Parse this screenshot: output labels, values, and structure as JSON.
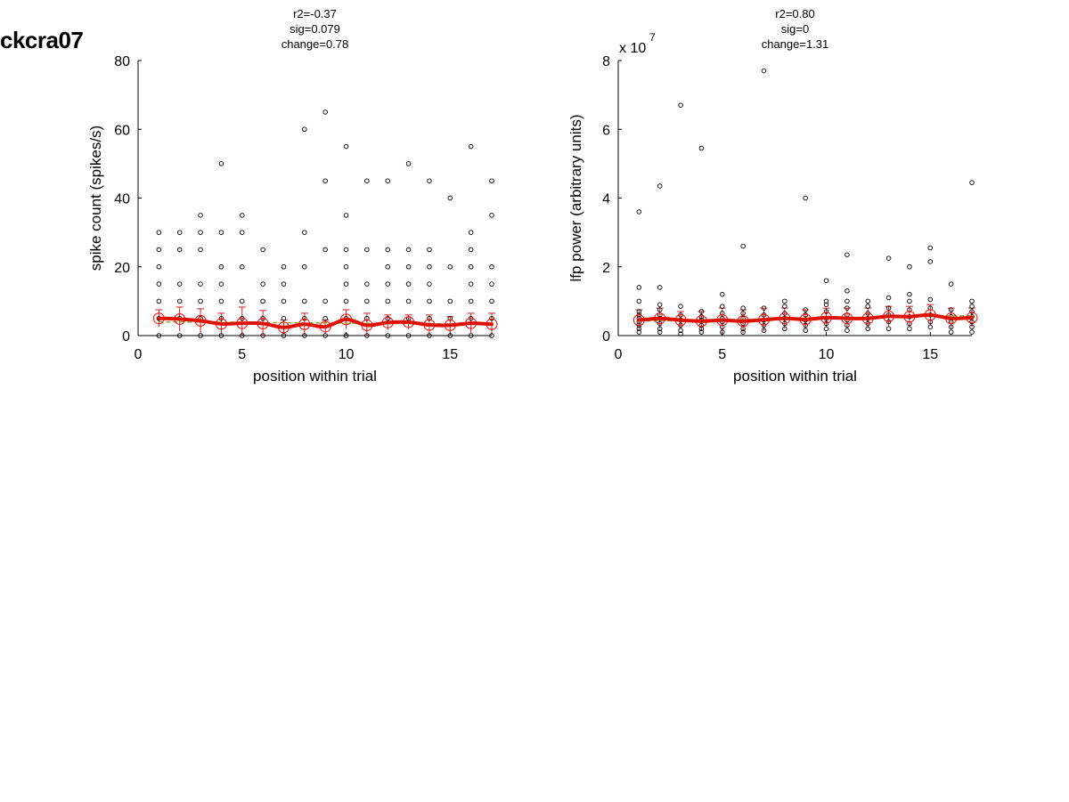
{
  "figure_title": "ckcra07",
  "colors": {
    "points": "#000000",
    "mean": "#ff0000",
    "smooth": "#dd1100",
    "fit": "#80b040",
    "errorbar": "#cc2222"
  },
  "chart_data": [
    {
      "type": "scatter",
      "title_lines": [
        "r2=-0.37",
        "sig=0.079",
        "change=0.78"
      ],
      "xlabel": "position within trial",
      "ylabel": "spike count (spikes/s)",
      "xlim": [
        0,
        17
      ],
      "ylim": [
        0,
        80
      ],
      "xticks": [
        0,
        5,
        10,
        15
      ],
      "yticks": [
        0,
        20,
        40,
        60,
        80
      ],
      "xtick_labels": [
        "0",
        "5",
        "10",
        "15"
      ],
      "ytick_labels": [
        "0",
        "20",
        "40",
        "60",
        "80"
      ],
      "exponent_label": "",
      "points": [
        [
          1,
          0
        ],
        [
          1,
          5
        ],
        [
          1,
          10
        ],
        [
          1,
          15
        ],
        [
          1,
          20
        ],
        [
          1,
          25
        ],
        [
          1,
          30
        ],
        [
          2,
          0
        ],
        [
          2,
          5
        ],
        [
          2,
          10
        ],
        [
          2,
          15
        ],
        [
          2,
          25
        ],
        [
          2,
          30
        ],
        [
          3,
          0
        ],
        [
          3,
          5
        ],
        [
          3,
          10
        ],
        [
          3,
          15
        ],
        [
          3,
          25
        ],
        [
          3,
          30
        ],
        [
          3,
          35
        ],
        [
          4,
          0
        ],
        [
          4,
          5
        ],
        [
          4,
          10
        ],
        [
          4,
          15
        ],
        [
          4,
          20
        ],
        [
          4,
          30
        ],
        [
          4,
          50
        ],
        [
          5,
          0
        ],
        [
          5,
          5
        ],
        [
          5,
          10
        ],
        [
          5,
          20
        ],
        [
          5,
          30
        ],
        [
          5,
          35
        ],
        [
          6,
          0
        ],
        [
          6,
          5
        ],
        [
          6,
          10
        ],
        [
          6,
          15
        ],
        [
          6,
          25
        ],
        [
          7,
          0
        ],
        [
          7,
          5
        ],
        [
          7,
          10
        ],
        [
          7,
          15
        ],
        [
          7,
          20
        ],
        [
          8,
          0
        ],
        [
          8,
          5
        ],
        [
          8,
          10
        ],
        [
          8,
          20
        ],
        [
          8,
          30
        ],
        [
          8,
          60
        ],
        [
          9,
          0
        ],
        [
          9,
          5
        ],
        [
          9,
          10
        ],
        [
          9,
          25
        ],
        [
          9,
          45
        ],
        [
          9,
          65
        ],
        [
          10,
          0
        ],
        [
          10,
          5
        ],
        [
          10,
          10
        ],
        [
          10,
          15
        ],
        [
          10,
          20
        ],
        [
          10,
          25
        ],
        [
          10,
          35
        ],
        [
          10,
          55
        ],
        [
          11,
          0
        ],
        [
          11,
          5
        ],
        [
          11,
          10
        ],
        [
          11,
          15
        ],
        [
          11,
          25
        ],
        [
          11,
          45
        ],
        [
          12,
          0
        ],
        [
          12,
          5
        ],
        [
          12,
          10
        ],
        [
          12,
          15
        ],
        [
          12,
          20
        ],
        [
          12,
          25
        ],
        [
          12,
          45
        ],
        [
          13,
          0
        ],
        [
          13,
          5
        ],
        [
          13,
          10
        ],
        [
          13,
          15
        ],
        [
          13,
          20
        ],
        [
          13,
          25
        ],
        [
          13,
          50
        ],
        [
          14,
          0
        ],
        [
          14,
          5
        ],
        [
          14,
          10
        ],
        [
          14,
          15
        ],
        [
          14,
          20
        ],
        [
          14,
          25
        ],
        [
          14,
          45
        ],
        [
          15,
          0
        ],
        [
          15,
          5
        ],
        [
          15,
          10
        ],
        [
          15,
          20
        ],
        [
          15,
          40
        ],
        [
          16,
          0
        ],
        [
          16,
          5
        ],
        [
          16,
          10
        ],
        [
          16,
          15
        ],
        [
          16,
          20
        ],
        [
          16,
          25
        ],
        [
          16,
          30
        ],
        [
          16,
          55
        ],
        [
          17,
          0
        ],
        [
          17,
          5
        ],
        [
          17,
          10
        ],
        [
          17,
          15
        ],
        [
          17,
          20
        ],
        [
          17,
          35
        ],
        [
          17,
          45
        ]
      ],
      "means": [
        [
          1,
          5.0,
          7.5
        ],
        [
          2,
          4.8,
          8.3
        ],
        [
          3,
          4.3,
          7.8
        ],
        [
          4,
          3.4,
          6.5
        ],
        [
          5,
          3.6,
          8.3
        ],
        [
          6,
          3.5,
          7.3
        ],
        [
          7,
          2.4,
          4.5
        ],
        [
          8,
          3.3,
          6.5
        ],
        [
          9,
          2.6,
          4.5
        ],
        [
          10,
          4.7,
          7.5
        ],
        [
          11,
          3.0,
          6.5
        ],
        [
          12,
          3.8,
          6.0
        ],
        [
          13,
          3.9,
          6.0
        ],
        [
          14,
          3.1,
          6.0
        ],
        [
          15,
          3.0,
          5.5
        ],
        [
          16,
          3.6,
          6.5
        ],
        [
          17,
          3.3,
          6.5
        ]
      ],
      "fit": [
        [
          1,
          4.0
        ],
        [
          17,
          3.3
        ]
      ]
    },
    {
      "type": "scatter",
      "title_lines": [
        "r2=0.80",
        "sig=0",
        "change=1.31"
      ],
      "xlabel": "position within trial",
      "ylabel": "lfp power (arbitrary units)",
      "xlim": [
        0,
        17
      ],
      "ylim": [
        0,
        8
      ],
      "xticks": [
        0,
        5,
        10,
        15
      ],
      "yticks": [
        0,
        2,
        4,
        6,
        8
      ],
      "xtick_labels": [
        "0",
        "5",
        "10",
        "15"
      ],
      "ytick_labels": [
        "0",
        "2",
        "4",
        "6",
        "8"
      ],
      "exponent_label": "x 10",
      "exponent_power": "7",
      "points": [
        [
          1,
          0.1
        ],
        [
          1,
          0.2
        ],
        [
          1,
          0.3
        ],
        [
          1,
          0.4
        ],
        [
          1,
          0.5
        ],
        [
          1,
          0.6
        ],
        [
          1,
          0.7
        ],
        [
          1,
          1.0
        ],
        [
          1,
          1.4
        ],
        [
          1,
          3.6
        ],
        [
          2,
          0.1
        ],
        [
          2,
          0.2
        ],
        [
          2,
          0.35
        ],
        [
          2,
          0.5
        ],
        [
          2,
          0.6
        ],
        [
          2,
          0.75
        ],
        [
          2,
          0.9
        ],
        [
          2,
          1.4
        ],
        [
          2,
          4.35
        ],
        [
          3,
          0.05
        ],
        [
          3,
          0.15
        ],
        [
          3,
          0.3
        ],
        [
          3,
          0.45
        ],
        [
          3,
          0.6
        ],
        [
          3,
          0.85
        ],
        [
          3,
          6.7
        ],
        [
          4,
          0.1
        ],
        [
          4,
          0.2
        ],
        [
          4,
          0.3
        ],
        [
          4,
          0.45
        ],
        [
          4,
          0.55
        ],
        [
          4,
          0.7
        ],
        [
          4,
          5.45
        ],
        [
          5,
          0.1
        ],
        [
          5,
          0.25
        ],
        [
          5,
          0.4
        ],
        [
          5,
          0.5
        ],
        [
          5,
          0.65
        ],
        [
          5,
          0.85
        ],
        [
          5,
          1.2
        ],
        [
          6,
          0.1
        ],
        [
          6,
          0.2
        ],
        [
          6,
          0.35
        ],
        [
          6,
          0.5
        ],
        [
          6,
          0.65
        ],
        [
          6,
          0.8
        ],
        [
          6,
          2.6
        ],
        [
          7,
          0.15
        ],
        [
          7,
          0.3
        ],
        [
          7,
          0.45
        ],
        [
          7,
          0.6
        ],
        [
          7,
          0.8
        ],
        [
          7,
          7.7
        ],
        [
          8,
          0.2
        ],
        [
          8,
          0.35
        ],
        [
          8,
          0.5
        ],
        [
          8,
          0.65
        ],
        [
          8,
          0.85
        ],
        [
          8,
          1.0
        ],
        [
          9,
          0.15
        ],
        [
          9,
          0.3
        ],
        [
          9,
          0.45
        ],
        [
          9,
          0.6
        ],
        [
          9,
          0.75
        ],
        [
          9,
          4.0
        ],
        [
          10,
          0.2
        ],
        [
          10,
          0.35
        ],
        [
          10,
          0.5
        ],
        [
          10,
          0.7
        ],
        [
          10,
          0.9
        ],
        [
          10,
          1.0
        ],
        [
          10,
          1.6
        ],
        [
          11,
          0.15
        ],
        [
          11,
          0.3
        ],
        [
          11,
          0.45
        ],
        [
          11,
          0.6
        ],
        [
          11,
          0.8
        ],
        [
          11,
          1.0
        ],
        [
          11,
          1.3
        ],
        [
          11,
          2.35
        ],
        [
          12,
          0.2
        ],
        [
          12,
          0.35
        ],
        [
          12,
          0.5
        ],
        [
          12,
          0.65
        ],
        [
          12,
          0.85
        ],
        [
          12,
          1.0
        ],
        [
          13,
          0.2
        ],
        [
          13,
          0.4
        ],
        [
          13,
          0.6
        ],
        [
          13,
          0.8
        ],
        [
          13,
          1.1
        ],
        [
          13,
          2.25
        ],
        [
          14,
          0.2
        ],
        [
          14,
          0.35
        ],
        [
          14,
          0.55
        ],
        [
          14,
          0.75
        ],
        [
          14,
          1.0
        ],
        [
          14,
          1.2
        ],
        [
          14,
          2.0
        ],
        [
          15,
          0.25
        ],
        [
          15,
          0.4
        ],
        [
          15,
          0.6
        ],
        [
          15,
          0.8
        ],
        [
          15,
          1.05
        ],
        [
          15,
          2.15
        ],
        [
          15,
          2.55
        ],
        [
          16,
          0.1
        ],
        [
          16,
          0.25
        ],
        [
          16,
          0.4
        ],
        [
          16,
          0.55
        ],
        [
          16,
          0.75
        ],
        [
          16,
          1.5
        ],
        [
          17,
          0.1
        ],
        [
          17,
          0.25
        ],
        [
          17,
          0.4
        ],
        [
          17,
          0.55
        ],
        [
          17,
          0.7
        ],
        [
          17,
          0.85
        ],
        [
          17,
          1.0
        ],
        [
          17,
          4.45
        ]
      ],
      "means": [
        [
          1,
          0.45,
          0.75
        ],
        [
          2,
          0.5,
          0.8
        ],
        [
          3,
          0.45,
          0.7
        ],
        [
          4,
          0.42,
          0.7
        ],
        [
          5,
          0.45,
          0.8
        ],
        [
          6,
          0.42,
          0.75
        ],
        [
          7,
          0.46,
          0.8
        ],
        [
          8,
          0.5,
          0.8
        ],
        [
          9,
          0.47,
          0.75
        ],
        [
          10,
          0.52,
          0.8
        ],
        [
          11,
          0.5,
          0.8
        ],
        [
          12,
          0.5,
          0.8
        ],
        [
          13,
          0.56,
          0.85
        ],
        [
          14,
          0.55,
          0.85
        ],
        [
          15,
          0.6,
          0.9
        ],
        [
          16,
          0.5,
          0.8
        ],
        [
          17,
          0.52,
          0.8
        ]
      ],
      "fit": [
        [
          1,
          0.42
        ],
        [
          17,
          0.58
        ]
      ]
    }
  ]
}
